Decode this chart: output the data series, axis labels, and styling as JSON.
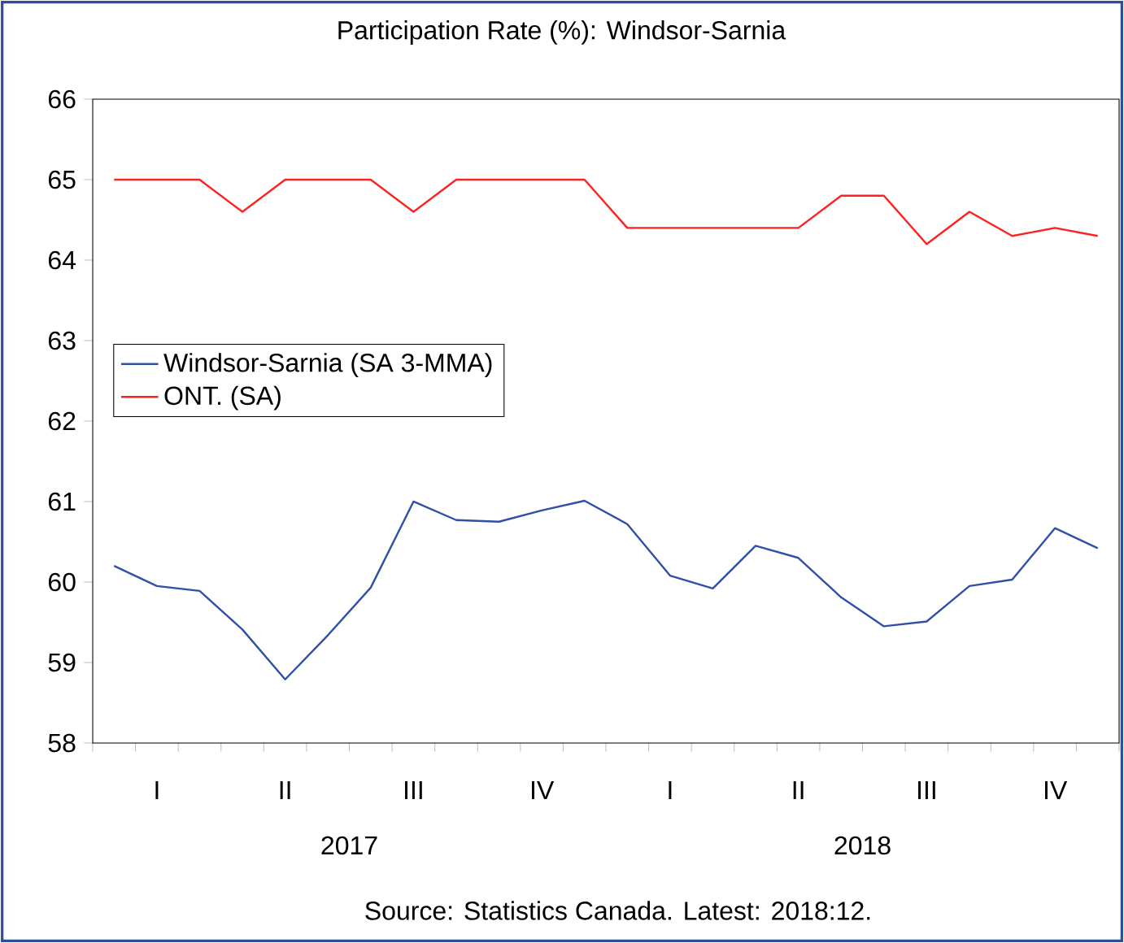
{
  "chart_data": {
    "type": "line",
    "title": "Participation Rate (%): Windsor-Sarnia",
    "categories": [
      null,
      null,
      null,
      null,
      null,
      null,
      null,
      null,
      null,
      null,
      null,
      null,
      null,
      null,
      null,
      null,
      null,
      null,
      null,
      null,
      null,
      null,
      null,
      null
    ],
    "series": [
      {
        "name": "Windsor-Sarnia (SA 3-MMA)",
        "color": "#3050a8",
        "values": [
          60.2,
          59.95,
          59.89,
          59.41,
          58.79,
          59.34,
          59.93,
          61.0,
          60.77,
          60.75,
          60.89,
          61.01,
          60.72,
          60.08,
          59.92,
          60.45,
          60.3,
          59.81,
          59.45,
          59.51,
          59.95,
          60.03,
          60.67,
          60.42
        ]
      },
      {
        "name": "ONT. (SA)",
        "color": "#ff2020",
        "values": [
          65.0,
          65.0,
          65.0,
          64.6,
          65.0,
          65.0,
          65.0,
          64.6,
          65.0,
          65.0,
          65.0,
          65.0,
          64.4,
          64.4,
          64.4,
          64.4,
          64.4,
          64.8,
          64.8,
          64.2,
          64.6,
          64.3,
          64.4,
          64.3
        ]
      }
    ],
    "ylim": [
      58,
      66
    ],
    "yticks": [
      58,
      59,
      60,
      61,
      62,
      63,
      64,
      65,
      66
    ],
    "annotations": [
      "I",
      "II",
      "III",
      "IV",
      "I",
      "II",
      "III",
      "IV",
      "2017",
      "2018",
      "Source: Statistics Canada. Latest: 2018:12."
    ],
    "grid": false,
    "legend": "left",
    "marker": "none",
    "line_style": "solid"
  }
}
